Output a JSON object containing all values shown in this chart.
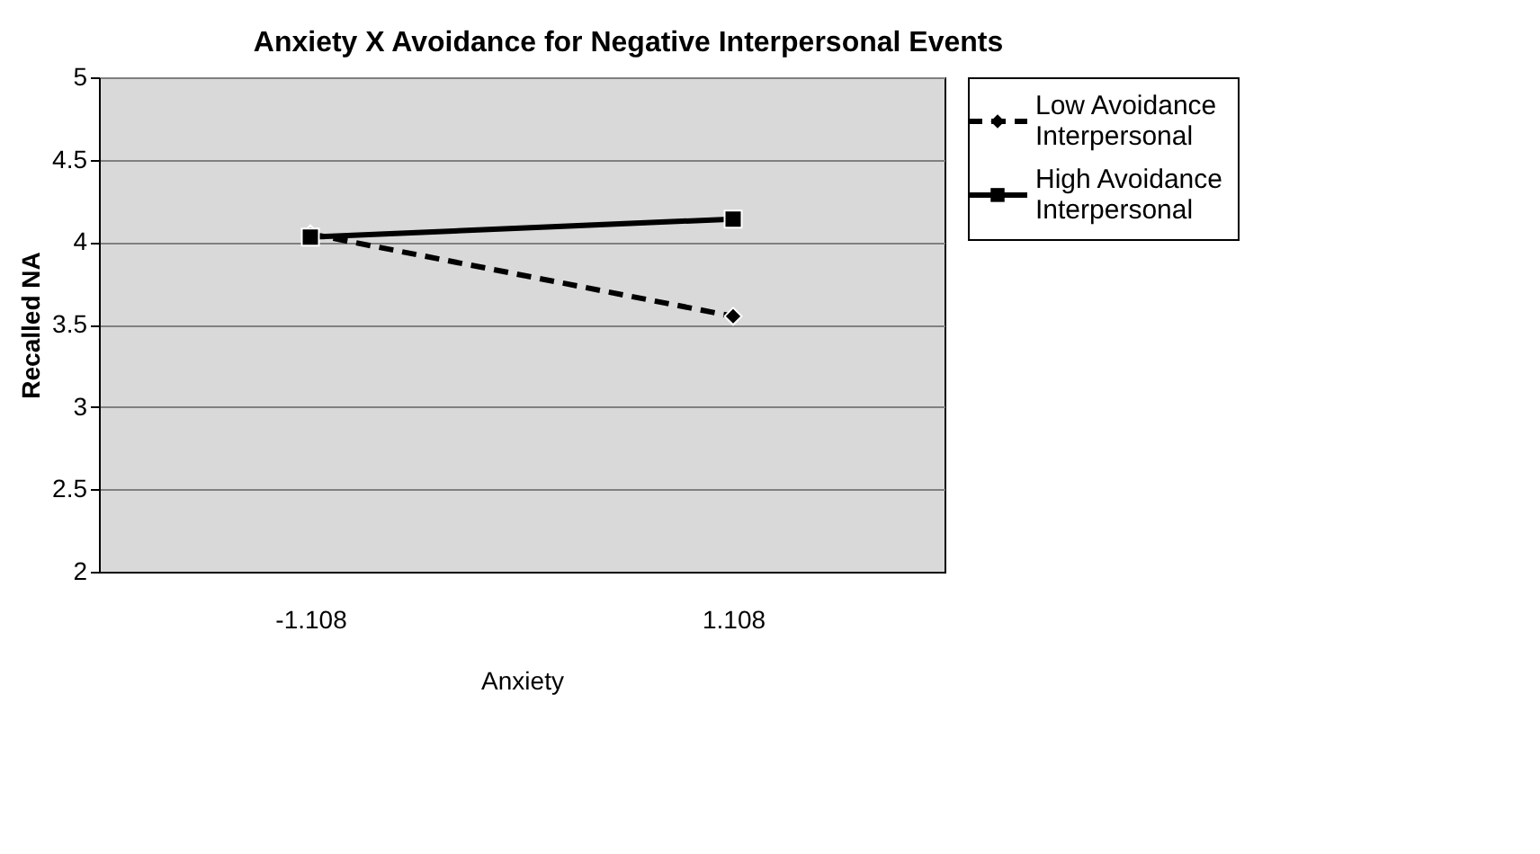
{
  "chart_data": {
    "type": "line",
    "title": "Anxiety X Avoidance for Negative Interpersonal Events",
    "xlabel": "Anxiety",
    "ylabel": "Recalled NA",
    "categories": [
      "-1.108",
      "1.108"
    ],
    "series": [
      {
        "name": "Low Avoidance Interpersonal",
        "color": "#000000",
        "values": [
          4.05,
          3.55
        ],
        "line_style": "dashed",
        "marker": "diamond"
      },
      {
        "name": "High Avoidance Interpersonal",
        "color": "#000000",
        "values": [
          4.03,
          4.14
        ],
        "line_style": "solid",
        "marker": "square"
      }
    ],
    "ylim": [
      2,
      5
    ],
    "yticks": [
      2,
      2.5,
      3,
      3.5,
      4,
      4.5,
      5
    ],
    "grid": "y",
    "legend": "right"
  }
}
